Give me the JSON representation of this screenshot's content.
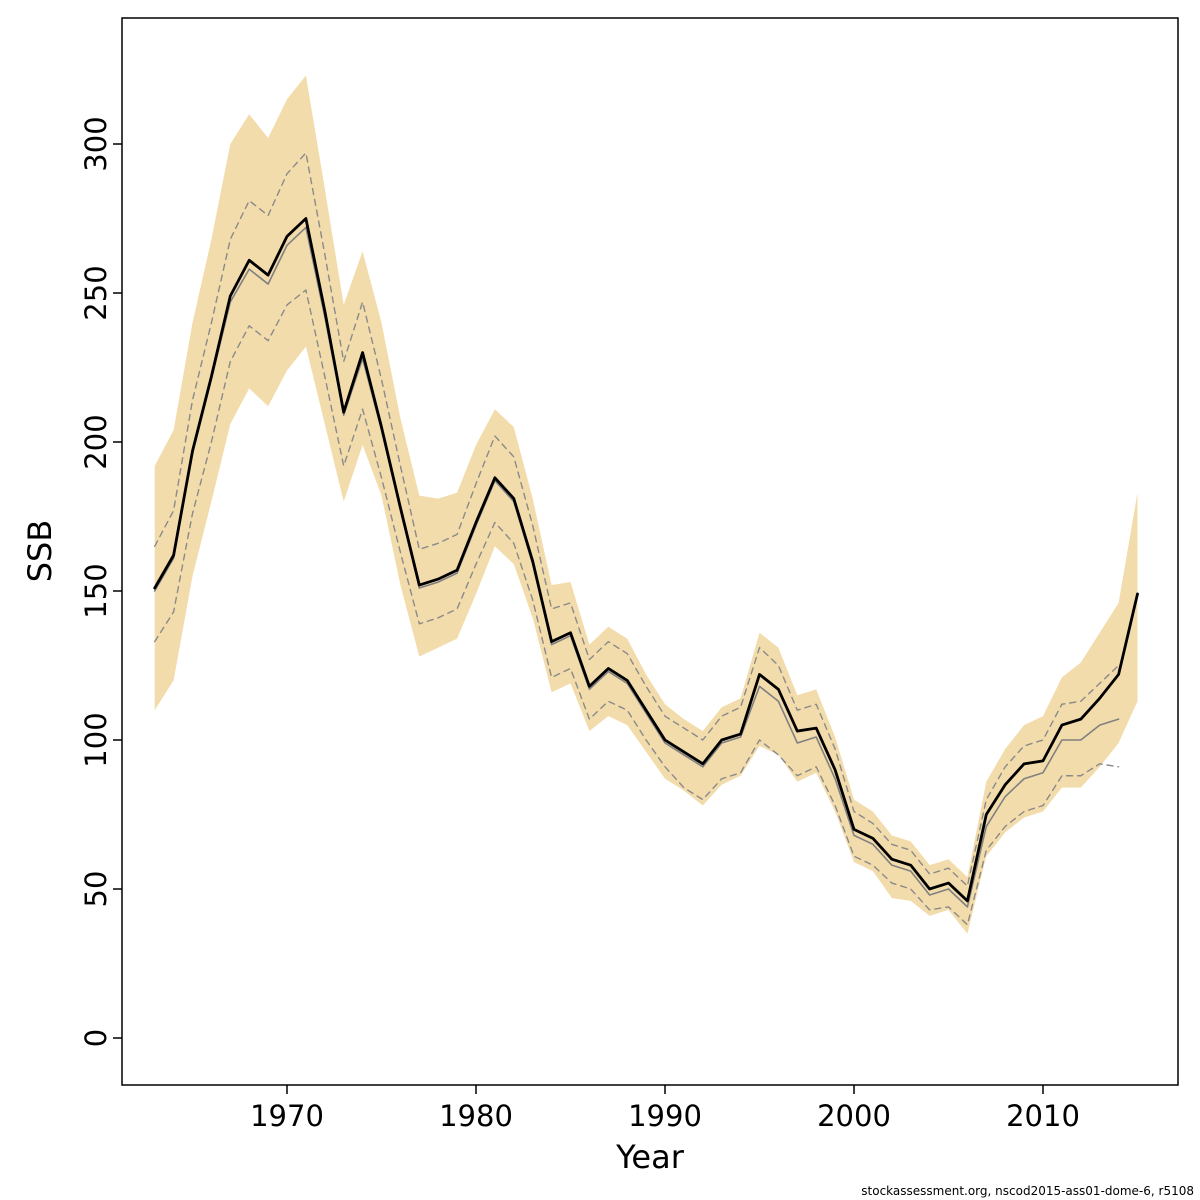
{
  "chart_data": {
    "type": "line",
    "title": "",
    "xlabel": "Year",
    "ylabel": "SSB",
    "footer": "stockassessment.org, nscod2015-ass01-dome-6, r5108",
    "x_ticks": [
      1970,
      1980,
      1990,
      2000,
      2010
    ],
    "y_ticks": [
      0,
      50,
      100,
      150,
      200,
      250,
      300
    ],
    "xlim": [
      1961.3,
      2017.1
    ],
    "ylim": [
      -16,
      342
    ],
    "grid": false,
    "legend": "none",
    "band": {
      "name": "confidence-band",
      "color": "#f3dcab",
      "year_start": 1963,
      "upper": [
        192,
        204,
        240,
        268,
        300,
        310,
        302,
        315,
        323,
        285,
        246,
        264,
        240,
        208,
        182,
        181,
        183,
        199,
        211,
        205,
        181,
        152,
        153,
        132,
        138,
        134,
        122,
        112,
        107,
        103,
        111,
        114,
        136,
        131,
        115,
        117,
        101,
        80,
        76,
        68,
        66,
        58,
        60,
        54,
        86,
        97,
        105,
        108,
        121,
        126,
        136,
        146,
        183
      ],
      "lower": [
        110,
        120,
        155,
        180,
        206,
        218,
        212,
        224,
        232,
        206,
        180,
        199,
        182,
        152,
        128,
        131,
        134,
        149,
        165,
        159,
        141,
        116,
        119,
        103,
        108,
        105,
        96,
        87,
        83,
        78,
        85,
        88,
        98,
        95,
        86,
        89,
        76,
        59,
        56,
        47,
        46,
        41,
        43,
        35,
        61,
        69,
        74,
        76,
        84,
        84,
        91,
        99,
        113
      ]
    },
    "series": [
      {
        "id": "ci-upper-dashed",
        "name": "upper confidence bound (dashed)",
        "color": "#8a8a8a",
        "width": 1.4,
        "dash": "6 5",
        "year_start": 1963,
        "values": [
          165,
          177,
          214,
          240,
          268,
          281,
          276,
          290,
          297,
          263,
          227,
          247,
          221,
          192,
          164,
          166,
          169,
          186,
          202,
          195,
          172,
          144,
          146,
          127,
          133,
          129,
          118,
          108,
          104,
          100,
          108,
          111,
          131,
          125,
          110,
          112,
          97,
          76,
          72,
          65,
          63,
          55,
          57,
          51,
          80,
          91,
          98,
          100,
          112,
          113,
          119,
          125
        ]
      },
      {
        "id": "ci-lower-dashed",
        "name": "lower confidence bound (dashed)",
        "color": "#8a8a8a",
        "width": 1.4,
        "dash": "6 5",
        "year_start": 1963,
        "values": [
          133,
          143,
          176,
          200,
          227,
          239,
          234,
          246,
          251,
          222,
          192,
          211,
          188,
          163,
          139,
          141,
          144,
          159,
          173,
          166,
          147,
          121,
          124,
          107,
          113,
          110,
          100,
          91,
          84,
          80,
          87,
          89,
          100,
          95,
          88,
          91,
          78,
          61,
          58,
          52,
          50,
          43,
          44,
          38,
          63,
          71,
          76,
          78,
          88,
          88,
          92,
          91
        ]
      },
      {
        "id": "previous-assessment-line",
        "name": "previous assessment estimate (gray)",
        "color": "#808080",
        "width": 1.6,
        "dash": null,
        "year_start": 1963,
        "values": [
          150,
          161,
          196,
          221,
          247,
          258,
          253,
          266,
          272,
          242,
          209,
          228,
          204,
          177,
          151,
          153,
          156,
          172,
          187,
          180,
          159,
          132,
          135,
          117,
          123,
          119,
          109,
          99,
          95,
          91,
          99,
          101,
          118,
          113,
          99,
          101,
          87,
          68,
          65,
          58,
          56,
          48,
          50,
          44,
          71,
          81,
          87,
          89,
          100,
          100,
          105,
          107
        ]
      },
      {
        "id": "ssb-line",
        "name": "SSB estimate (black)",
        "color": "#000000",
        "width": 2.8,
        "dash": null,
        "year_start": 1963,
        "values": [
          151,
          162,
          197,
          222,
          249,
          261,
          256,
          269,
          275,
          244,
          210,
          230,
          205,
          178,
          152,
          154,
          157,
          173,
          188,
          181,
          160,
          133,
          136,
          118,
          124,
          120,
          110,
          100,
          96,
          92,
          100,
          102,
          122,
          117,
          103,
          104,
          90,
          70,
          67,
          60,
          58,
          50,
          52,
          46,
          75,
          85,
          92,
          93,
          105,
          107,
          114,
          122,
          149
        ]
      }
    ]
  }
}
